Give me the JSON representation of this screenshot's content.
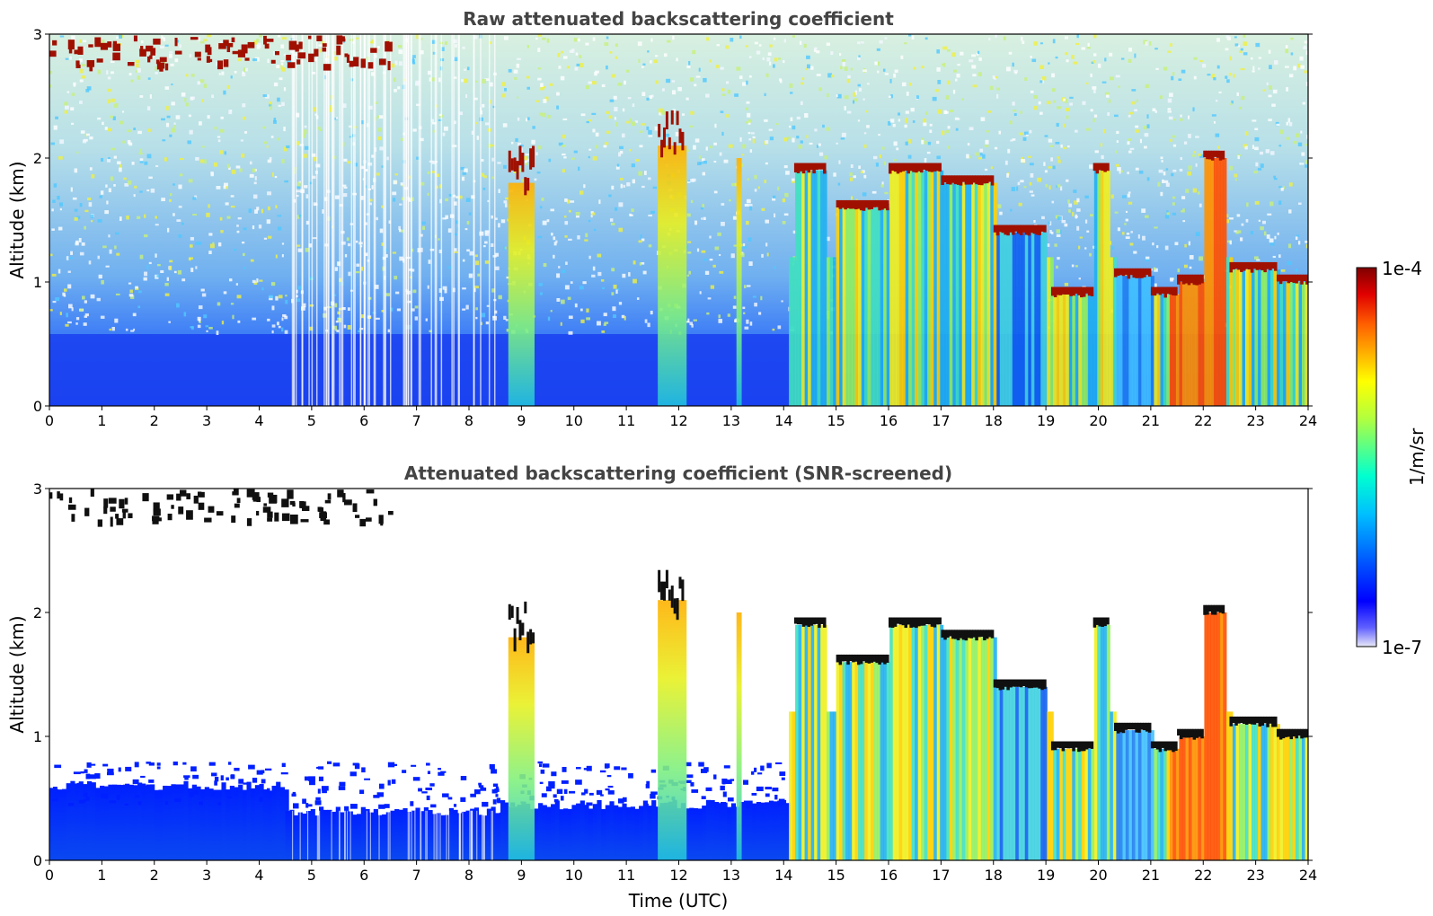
{
  "chart_data": [
    {
      "type": "heatmap",
      "title": "Raw attenuated backscattering coefficient",
      "xlabel": "",
      "ylabel": "Altitude (km)",
      "xlim": [
        0,
        24
      ],
      "ylim": [
        0,
        3
      ],
      "x_ticks": [
        "0",
        "1",
        "2",
        "3",
        "4",
        "5",
        "6",
        "7",
        "8",
        "9",
        "10",
        "11",
        "12",
        "13",
        "14",
        "15",
        "16",
        "17",
        "18",
        "19",
        "20",
        "21",
        "22",
        "23",
        "24"
      ],
      "y_ticks": [
        "0",
        "1",
        "2",
        "3"
      ],
      "cloud_base_km": [
        {
          "start": 8.7,
          "end": 9.2,
          "altitude": 1.8
        },
        {
          "start": 14.2,
          "end": 14.8,
          "altitude": 1.9
        },
        {
          "start": 15.0,
          "end": 16.0,
          "altitude": 1.6
        },
        {
          "start": 16.0,
          "end": 17.0,
          "altitude": 1.9
        },
        {
          "start": 17.0,
          "end": 18.0,
          "altitude": 1.8
        },
        {
          "start": 18.0,
          "end": 19.0,
          "altitude": 1.4
        },
        {
          "start": 19.1,
          "end": 19.9,
          "altitude": 0.9
        },
        {
          "start": 19.9,
          "end": 20.2,
          "altitude": 1.9
        },
        {
          "start": 20.3,
          "end": 21.0,
          "altitude": 1.05
        },
        {
          "start": 21.0,
          "end": 21.5,
          "altitude": 0.9
        },
        {
          "start": 21.5,
          "end": 22.0,
          "altitude": 1.0
        },
        {
          "start": 22.0,
          "end": 22.4,
          "altitude": 2.0
        },
        {
          "start": 22.5,
          "end": 23.4,
          "altitude": 1.1
        },
        {
          "start": 23.4,
          "end": 24.0,
          "altitude": 1.0
        }
      ]
    },
    {
      "type": "heatmap",
      "title": "Attenuated backscattering coefficient (SNR-screened)",
      "xlabel": "Time (UTC)",
      "ylabel": "Altitude (km)",
      "xlim": [
        0,
        24
      ],
      "ylim": [
        0,
        3
      ],
      "x_ticks": [
        "0",
        "1",
        "2",
        "3",
        "4",
        "5",
        "6",
        "7",
        "8",
        "9",
        "10",
        "11",
        "12",
        "13",
        "14",
        "15",
        "16",
        "17",
        "18",
        "19",
        "20",
        "21",
        "22",
        "23",
        "24"
      ],
      "y_ticks": [
        "0",
        "1",
        "2",
        "3"
      ],
      "boundary_layer_top_km": [
        {
          "start": 0.0,
          "end": 4.5,
          "altitude": 0.6
        },
        {
          "start": 4.5,
          "end": 8.6,
          "altitude": 0.4
        },
        {
          "start": 8.6,
          "end": 14.1,
          "altitude": 0.45
        }
      ]
    }
  ],
  "colorbar": {
    "label": "1/m/sr",
    "max_label": "1e-4",
    "min_label": "1e-7",
    "scale": "log",
    "range": [
      1e-07,
      0.0001
    ],
    "colors": [
      "#e8e8f8",
      "#0000ff",
      "#00ffff",
      "#ffff00",
      "#ff0000",
      "#800000"
    ]
  }
}
